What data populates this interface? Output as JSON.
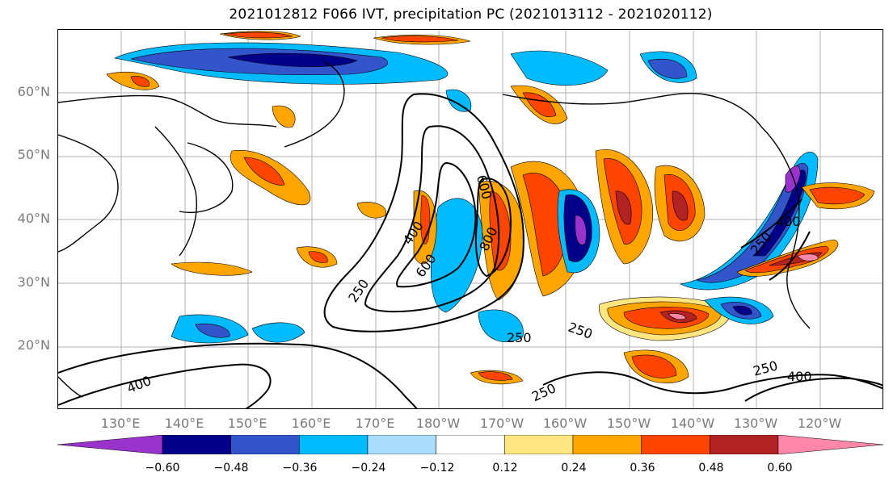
{
  "title": "2021012812 F066 IVT, precipitation PC (2021013112 - 2021020112)",
  "lat_labels": [
    "60°N",
    "50°N",
    "40°N",
    "30°N",
    "20°N"
  ],
  "lon_labels": [
    "130°E",
    "140°E",
    "150°E",
    "160°E",
    "170°E",
    "180°W",
    "170°W",
    "160°W",
    "150°W",
    "140°W",
    "130°W",
    "120°W"
  ],
  "contour_labels": [
    "250",
    "400",
    "600",
    "800",
    "250",
    "400",
    "600",
    "800",
    "250",
    "400",
    "250",
    "250",
    "250",
    "400",
    "250",
    "400"
  ],
  "colorbar": {
    "colors": [
      "#9933cc",
      "#000088",
      "#3355cc",
      "#00bbff",
      "#aaddff",
      "#ffffff",
      "#ffe680",
      "#ffa500",
      "#ff4500",
      "#b22222",
      "#ff88aa"
    ],
    "ticks": [
      "−0.60",
      "−0.48",
      "−0.36",
      "−0.24",
      "−0.12",
      "0.12",
      "0.24",
      "0.36",
      "0.48",
      "0.60"
    ]
  }
}
